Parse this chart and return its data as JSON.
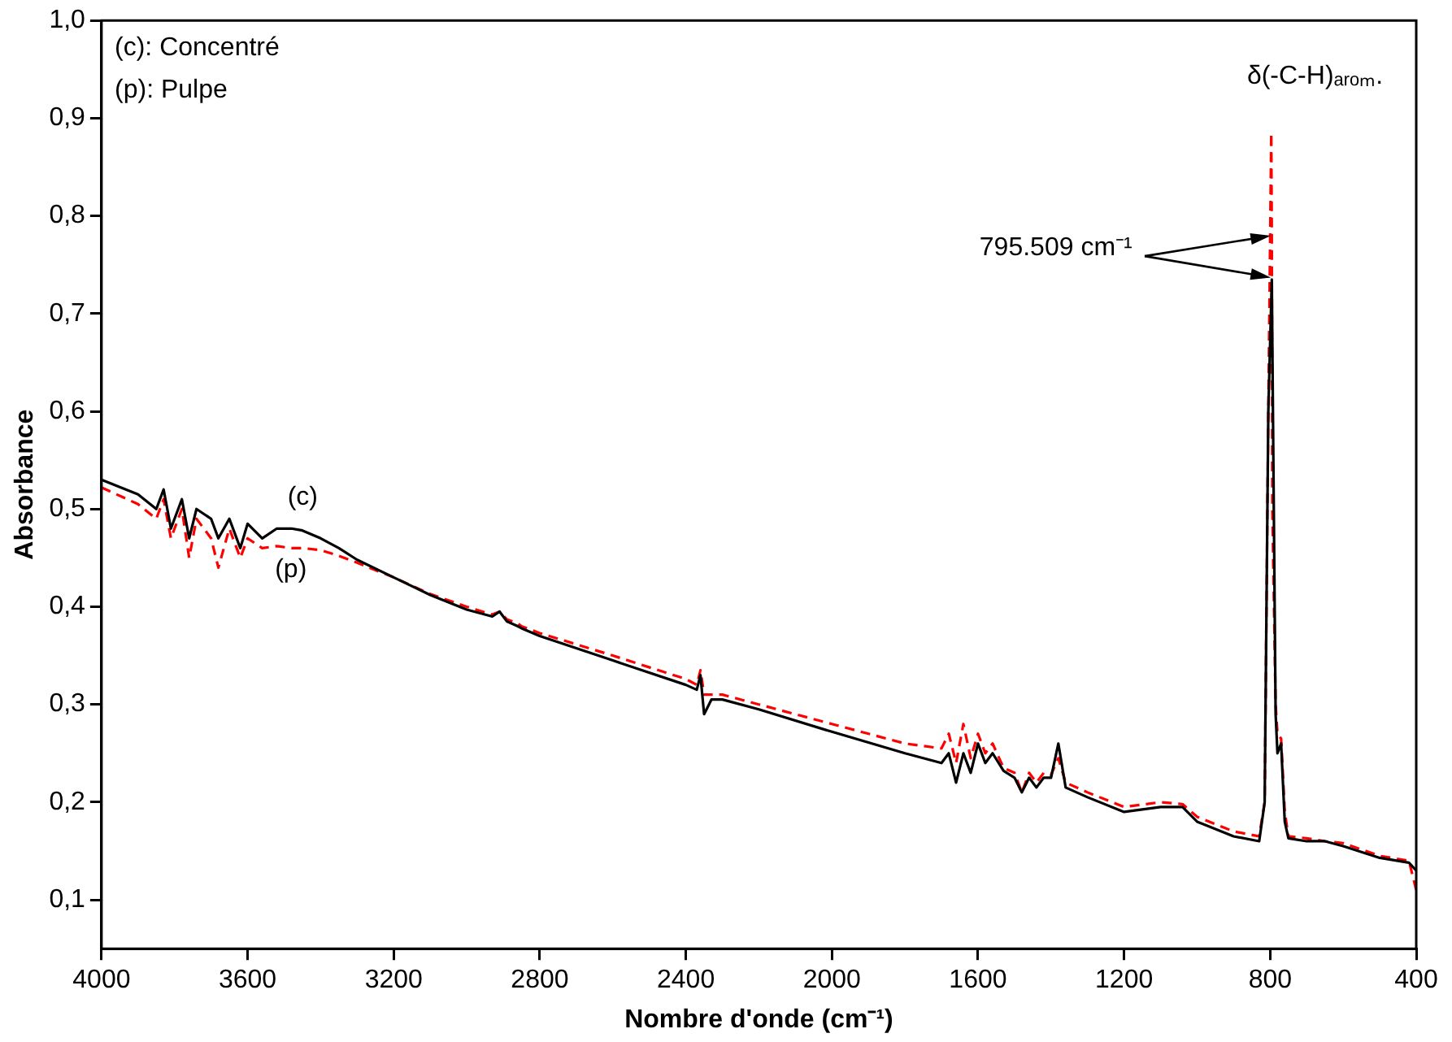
{
  "chart_data": {
    "type": "line",
    "xlabel": "Nombre d'onde (cm⁻¹)",
    "ylabel": "Absorbance",
    "xlim": [
      4000,
      400
    ],
    "xticks": [
      4000,
      3600,
      3200,
      2800,
      2400,
      2000,
      1600,
      1200,
      800,
      400
    ],
    "ylim": [
      0.05,
      1.0
    ],
    "yticks": [
      {
        "value": 0.1,
        "label": "0,1"
      },
      {
        "value": 0.2,
        "label": "0,2"
      },
      {
        "value": 0.3,
        "label": "0,3"
      },
      {
        "value": 0.4,
        "label": "0,4"
      },
      {
        "value": 0.5,
        "label": "0,5"
      },
      {
        "value": 0.6,
        "label": "0,6"
      },
      {
        "value": 0.7,
        "label": "0,7"
      },
      {
        "value": 0.8,
        "label": "0,8"
      },
      {
        "value": 0.9,
        "label": "0,9"
      },
      {
        "value": 1.0,
        "label": "1,0"
      }
    ],
    "grid": false,
    "legend": false,
    "marker": "none",
    "series": [
      {
        "color": "#000000",
        "line_style": "solid",
        "x": [
          4000,
          3900,
          3850,
          3830,
          3810,
          3780,
          3760,
          3740,
          3700,
          3680,
          3650,
          3620,
          3600,
          3560,
          3520,
          3480,
          3450,
          3400,
          3350,
          3300,
          3200,
          3100,
          3000,
          2930,
          2910,
          2890,
          2860,
          2850,
          2800,
          2600,
          2400,
          2370,
          2360,
          2350,
          2330,
          2300,
          2200,
          2000,
          1800,
          1700,
          1680,
          1660,
          1640,
          1620,
          1600,
          1580,
          1560,
          1530,
          1500,
          1480,
          1460,
          1440,
          1420,
          1400,
          1380,
          1360,
          1300,
          1200,
          1100,
          1040,
          1000,
          900,
          830,
          815,
          805,
          795.509,
          790,
          785,
          780,
          770,
          760,
          750,
          700,
          650,
          600,
          500,
          420,
          400
        ],
        "values": [
          0.53,
          0.515,
          0.5,
          0.52,
          0.48,
          0.51,
          0.47,
          0.5,
          0.49,
          0.47,
          0.49,
          0.46,
          0.485,
          0.47,
          0.48,
          0.48,
          0.478,
          0.47,
          0.46,
          0.448,
          0.43,
          0.412,
          0.397,
          0.39,
          0.395,
          0.385,
          0.38,
          0.378,
          0.37,
          0.345,
          0.32,
          0.315,
          0.33,
          0.29,
          0.305,
          0.305,
          0.295,
          0.272,
          0.25,
          0.24,
          0.25,
          0.22,
          0.25,
          0.23,
          0.26,
          0.24,
          0.25,
          0.232,
          0.225,
          0.21,
          0.225,
          0.215,
          0.225,
          0.225,
          0.26,
          0.215,
          0.205,
          0.19,
          0.195,
          0.195,
          0.18,
          0.165,
          0.16,
          0.2,
          0.6,
          0.735,
          0.5,
          0.29,
          0.25,
          0.26,
          0.18,
          0.163,
          0.16,
          0.16,
          0.155,
          0.143,
          0.138,
          0.13
        ]
      },
      {
        "color": "#ff0000",
        "line_style": "dashed",
        "x": [
          4000,
          3900,
          3850,
          3830,
          3810,
          3780,
          3760,
          3740,
          3700,
          3680,
          3650,
          3620,
          3600,
          3560,
          3520,
          3480,
          3450,
          3400,
          3350,
          3300,
          3200,
          3100,
          3000,
          2930,
          2910,
          2890,
          2860,
          2850,
          2800,
          2600,
          2400,
          2370,
          2360,
          2350,
          2330,
          2300,
          2200,
          2000,
          1800,
          1700,
          1680,
          1660,
          1640,
          1620,
          1600,
          1580,
          1560,
          1530,
          1500,
          1480,
          1460,
          1440,
          1420,
          1400,
          1380,
          1360,
          1300,
          1200,
          1100,
          1040,
          1000,
          900,
          830,
          815,
          805,
          797,
          795.509,
          794,
          785,
          780,
          770,
          760,
          750,
          700,
          650,
          600,
          500,
          420,
          400
        ],
        "values": [
          0.522,
          0.505,
          0.49,
          0.51,
          0.47,
          0.5,
          0.45,
          0.49,
          0.47,
          0.44,
          0.48,
          0.45,
          0.47,
          0.46,
          0.462,
          0.46,
          0.46,
          0.458,
          0.452,
          0.445,
          0.43,
          0.413,
          0.4,
          0.392,
          0.395,
          0.387,
          0.383,
          0.38,
          0.373,
          0.35,
          0.326,
          0.32,
          0.335,
          0.31,
          0.31,
          0.31,
          0.3,
          0.28,
          0.26,
          0.255,
          0.27,
          0.24,
          0.28,
          0.245,
          0.27,
          0.25,
          0.26,
          0.235,
          0.23,
          0.21,
          0.23,
          0.22,
          0.23,
          0.228,
          0.245,
          0.22,
          0.21,
          0.195,
          0.2,
          0.198,
          0.185,
          0.17,
          0.165,
          0.2,
          0.6,
          0.885,
          0.785,
          0.5,
          0.3,
          0.27,
          0.265,
          0.19,
          0.165,
          0.163,
          0.16,
          0.158,
          0.145,
          0.14,
          0.11
        ]
      }
    ],
    "annotations": [
      "(c): Concentré",
      "(p): Pulpe",
      "(c)",
      "(p)",
      "795.509 cm⁻¹",
      "δ(-C-H)ₐᵣₒₘ."
    ]
  }
}
